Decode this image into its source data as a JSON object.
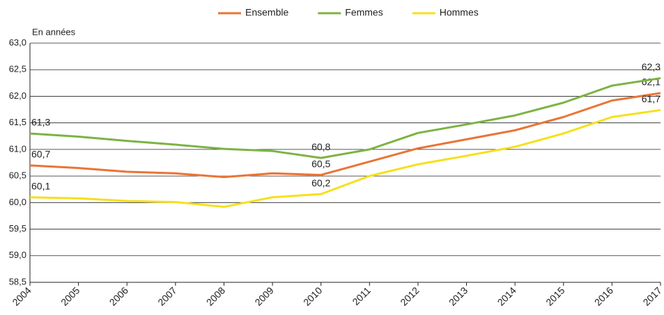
{
  "chart_data": {
    "type": "line",
    "y_label": "En années",
    "categories": [
      "2004",
      "2005",
      "2006",
      "2007",
      "2008",
      "2009",
      "2010",
      "2011",
      "2012",
      "2013",
      "2014",
      "2015",
      "2016",
      "2017"
    ],
    "series": [
      {
        "name": "Ensemble",
        "color": "#ea7434",
        "values": [
          60.7,
          60.65,
          60.58,
          60.55,
          60.48,
          60.55,
          60.52,
          60.77,
          61.02,
          61.19,
          61.36,
          61.61,
          61.92,
          62.06
        ],
        "value_labels": [
          "60,7",
          null,
          null,
          null,
          null,
          null,
          "60,5",
          null,
          null,
          null,
          null,
          null,
          null,
          "62,1"
        ]
      },
      {
        "name": "Femmes",
        "color": "#7cb342",
        "values": [
          61.3,
          61.24,
          61.16,
          61.09,
          61.01,
          60.97,
          60.84,
          61.0,
          61.31,
          61.47,
          61.64,
          61.88,
          62.2,
          62.34
        ],
        "value_labels": [
          "61,3",
          null,
          null,
          null,
          null,
          null,
          "60,8",
          null,
          null,
          null,
          null,
          null,
          null,
          "62,3"
        ]
      },
      {
        "name": "Hommes",
        "color": "#f6e019",
        "values": [
          60.1,
          60.08,
          60.03,
          60.01,
          59.92,
          60.1,
          60.16,
          60.5,
          60.72,
          60.88,
          61.05,
          61.3,
          61.61,
          61.74
        ],
        "value_labels": [
          "60,1",
          null,
          null,
          null,
          null,
          null,
          "60,2",
          null,
          null,
          null,
          null,
          null,
          null,
          "61,7"
        ]
      }
    ],
    "ylim": [
      58.5,
      63.0
    ],
    "yticks": [
      {
        "value": 58.5,
        "label": "58,5"
      },
      {
        "value": 59.0,
        "label": "59,0"
      },
      {
        "value": 59.5,
        "label": "59,5"
      },
      {
        "value": 60.0,
        "label": "60,0"
      },
      {
        "value": 60.5,
        "label": "60,5"
      },
      {
        "value": 61.0,
        "label": "61,0"
      },
      {
        "value": 61.5,
        "label": "61,5"
      },
      {
        "value": 62.0,
        "label": "62,0"
      },
      {
        "value": 62.5,
        "label": "62,5"
      },
      {
        "value": 63.0,
        "label": "63,0"
      }
    ],
    "grid": true,
    "legend": "top"
  }
}
